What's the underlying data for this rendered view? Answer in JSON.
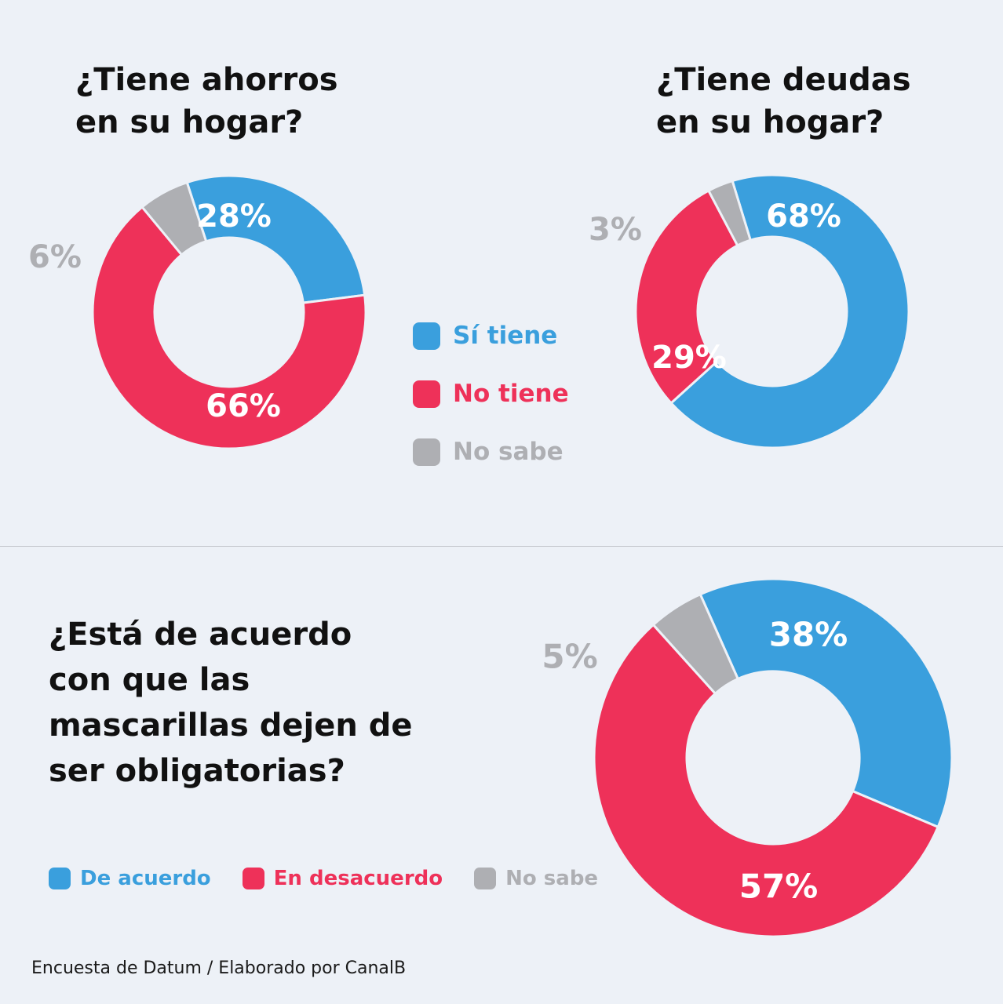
{
  "colors": {
    "blue": "#3a9fdd",
    "red": "#ee3159",
    "gray": "#aeafb3",
    "background": "#edf1f7"
  },
  "legend_top": {
    "items": [
      {
        "label": "Sí tiene",
        "color": "#3a9fdd"
      },
      {
        "label": "No tiene",
        "color": "#ee3159"
      },
      {
        "label": "No sabe",
        "color": "#aeafb3"
      }
    ]
  },
  "legend_bottom": {
    "items": [
      {
        "label": "De acuerdo",
        "color": "#3a9fdd"
      },
      {
        "label": "En desacuerdo",
        "color": "#ee3159"
      },
      {
        "label": "No sabe",
        "color": "#aeafb3"
      }
    ]
  },
  "source": "Encuesta de Datum / Elaborado por CanalB",
  "chart_data": [
    {
      "type": "pie",
      "title": "¿Tiene ahorros\nen su hogar?",
      "categories": [
        "Sí tiene",
        "No tiene",
        "No sabe"
      ],
      "values": [
        28,
        66,
        6
      ],
      "labels": [
        "28%",
        "66%",
        "6%"
      ],
      "colors": [
        "#3a9fdd",
        "#ee3159",
        "#aeafb3"
      ],
      "donut": true
    },
    {
      "type": "pie",
      "title": "¿Tiene deudas\nen su hogar?",
      "categories": [
        "Sí tiene",
        "No tiene",
        "No sabe"
      ],
      "values": [
        68,
        29,
        3
      ],
      "labels": [
        "68%",
        "29%",
        "3%"
      ],
      "colors": [
        "#3a9fdd",
        "#ee3159",
        "#aeafb3"
      ],
      "donut": true
    },
    {
      "type": "pie",
      "title": "¿Está de acuerdo\ncon que las\nmascarillas dejen de\nser obligatorias?",
      "categories": [
        "De acuerdo",
        "En desacuerdo",
        "No sabe"
      ],
      "values": [
        38,
        57,
        5
      ],
      "labels": [
        "38%",
        "57%",
        "5%"
      ],
      "colors": [
        "#3a9fdd",
        "#ee3159",
        "#aeafb3"
      ],
      "donut": true
    }
  ]
}
